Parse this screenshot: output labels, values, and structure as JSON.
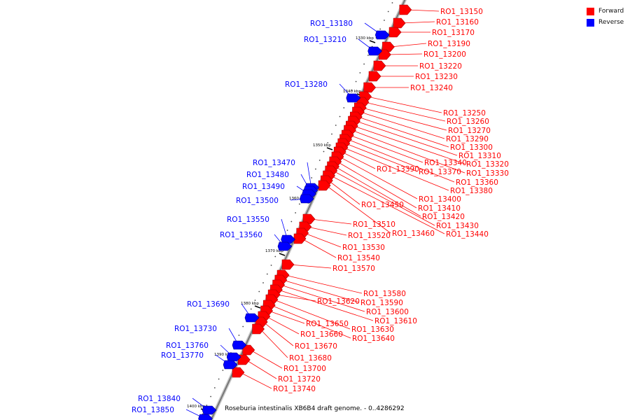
{
  "legend": {
    "forward": {
      "label": "Forward",
      "color": "#ff0000"
    },
    "reverse": {
      "label": "Reverse",
      "color": "#0000ff"
    }
  },
  "genome_title": "Roseburia intestinalis XB6B4 draft genome. - 0..4286292",
  "scale_labels": [
    "1330 kbp",
    "1340 kbp",
    "1350 kbp",
    "1360 kbp",
    "1370 kbp",
    "1380 kbp",
    "1390 kbp",
    "1400 kbp"
  ],
  "genes_forward": [
    "RO1_13150",
    "RO1_13160",
    "RO1_13170",
    "RO1_13190",
    "RO1_13200",
    "RO1_13220",
    "RO1_13230",
    "RO1_13240",
    "RO1_13250",
    "RO1_13260",
    "RO1_13270",
    "RO1_13290",
    "RO1_13300",
    "RO1_13310",
    "RO1_13320",
    "RO1_13330",
    "RO1_13340",
    "RO1_13360",
    "RO1_13370",
    "RO1_13380",
    "RO1_13390",
    "RO1_13400",
    "RO1_13410",
    "RO1_13420",
    "RO1_13430",
    "RO1_13440",
    "RO1_13450",
    "RO1_13460",
    "RO1_13510",
    "RO1_13520",
    "RO1_13530",
    "RO1_13540",
    "RO1_13570",
    "RO1_13580",
    "RO1_13590",
    "RO1_13600",
    "RO1_13610",
    "RO1_13620",
    "RO1_13630",
    "RO1_13640",
    "RO1_13650",
    "RO1_13660",
    "RO1_13670",
    "RO1_13680",
    "RO1_13700",
    "RO1_13720",
    "RO1_13740"
  ],
  "genes_reverse": [
    "RO1_13180",
    "RO1_13210",
    "RO1_13280",
    "RO1_13470",
    "RO1_13480",
    "RO1_13490",
    "RO1_13500",
    "RO1_13550",
    "RO1_13560",
    "RO1_13690",
    "RO1_13730",
    "RO1_13760",
    "RO1_13770",
    "RO1_13840",
    "RO1_13850"
  ]
}
